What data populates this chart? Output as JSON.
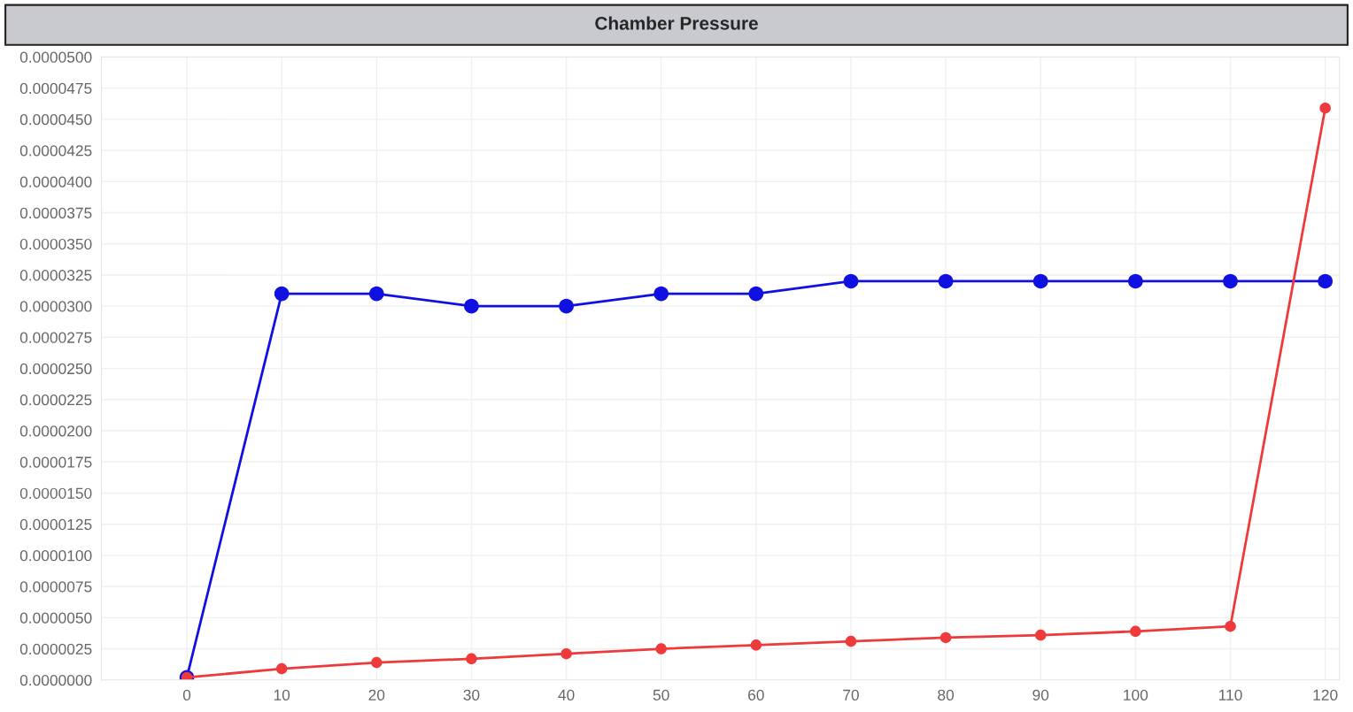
{
  "chart_data": {
    "type": "line",
    "title": "Chamber Pressure",
    "categories": [
      "0",
      "10",
      "20",
      "30",
      "40",
      "50",
      "60",
      "70",
      "80",
      "90",
      "100",
      "110",
      "120"
    ],
    "series": [
      {
        "color": "#1010e0",
        "values": [
          2e-07,
          3.1e-05,
          3.1e-05,
          3e-05,
          3e-05,
          3.1e-05,
          3.1e-05,
          3.2e-05,
          3.2e-05,
          3.2e-05,
          3.2e-05,
          3.2e-05,
          3.2e-05
        ]
      },
      {
        "color": "#ee3a3a",
        "values": [
          2e-07,
          9e-07,
          1.4e-06,
          1.7e-06,
          2.1e-06,
          2.5e-06,
          2.8e-06,
          3.1e-06,
          3.4e-06,
          3.6e-06,
          3.9e-06,
          4.3e-06,
          4.59e-05
        ]
      }
    ],
    "ylim": [
      0,
      5e-05
    ],
    "yticks": [
      {
        "value": 0,
        "label": "0.0000000"
      },
      {
        "value": 2.5e-06,
        "label": "0.0000025"
      },
      {
        "value": 5e-06,
        "label": "0.0000050"
      },
      {
        "value": 7.5e-06,
        "label": "0.0000075"
      },
      {
        "value": 1e-05,
        "label": "0.0000100"
      },
      {
        "value": 1.25e-05,
        "label": "0.0000125"
      },
      {
        "value": 1.5e-05,
        "label": "0.0000150"
      },
      {
        "value": 1.75e-05,
        "label": "0.0000175"
      },
      {
        "value": 2e-05,
        "label": "0.0000200"
      },
      {
        "value": 2.25e-05,
        "label": "0.0000225"
      },
      {
        "value": 2.5e-05,
        "label": "0.0000250"
      },
      {
        "value": 2.75e-05,
        "label": "0.0000275"
      },
      {
        "value": 3e-05,
        "label": "0.0000300"
      },
      {
        "value": 3.25e-05,
        "label": "0.0000325"
      },
      {
        "value": 3.5e-05,
        "label": "0.0000350"
      },
      {
        "value": 3.75e-05,
        "label": "0.0000375"
      },
      {
        "value": 4e-05,
        "label": "0.0000400"
      },
      {
        "value": 4.25e-05,
        "label": "0.0000425"
      },
      {
        "value": 4.5e-05,
        "label": "0.0000450"
      },
      {
        "value": 4.75e-05,
        "label": "0.0000475"
      },
      {
        "value": 5e-05,
        "label": "0.0000500"
      }
    ],
    "grid": true,
    "marker": "circle",
    "line_style": "solid"
  }
}
